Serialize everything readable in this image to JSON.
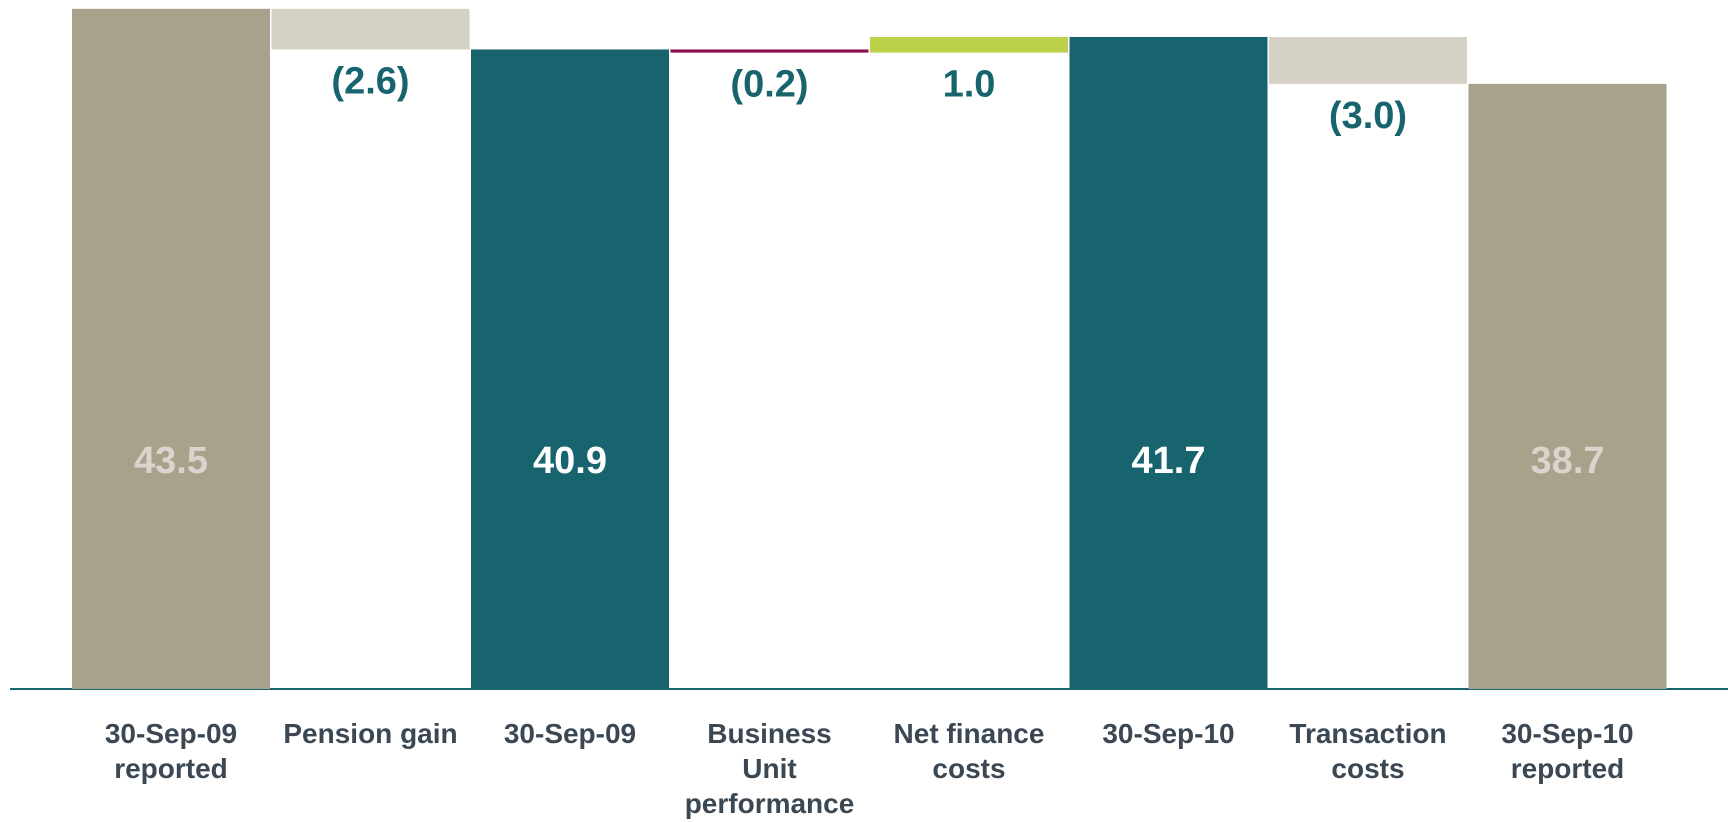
{
  "chart_data": {
    "type": "waterfall",
    "categories": [
      "30-Sep-09\nreported",
      "Pension gain",
      "30-Sep-09",
      "Business\nUnit\nperformance",
      "Net finance\ncosts",
      "30-Sep-10",
      "Transaction\ncosts",
      "30-Sep-10\nreported"
    ],
    "values": [
      43.5,
      -2.6,
      40.9,
      -0.2,
      1.0,
      41.7,
      -3.0,
      38.7
    ],
    "value_labels": [
      "43.5",
      "(2.6)",
      "40.9",
      "(0.2)",
      "1.0",
      "41.7",
      "(3.0)",
      "38.7"
    ],
    "measure": [
      "absolute",
      "relative",
      "absolute",
      "relative",
      "relative",
      "absolute",
      "relative",
      "absolute"
    ],
    "colors": [
      "#a8a18b",
      "#d6d1c5",
      "#17646e",
      "#8a0b4f",
      "#bcd04a",
      "#17646e",
      "#d6d1c5",
      "#a8a18b"
    ],
    "label_colors": [
      "#d9d5cc",
      "#17646e",
      "#ffffff",
      "#17646e",
      "#17646e",
      "#ffffff",
      "#17646e",
      "#d9d5cc"
    ],
    "ylim": [
      0,
      44
    ]
  }
}
